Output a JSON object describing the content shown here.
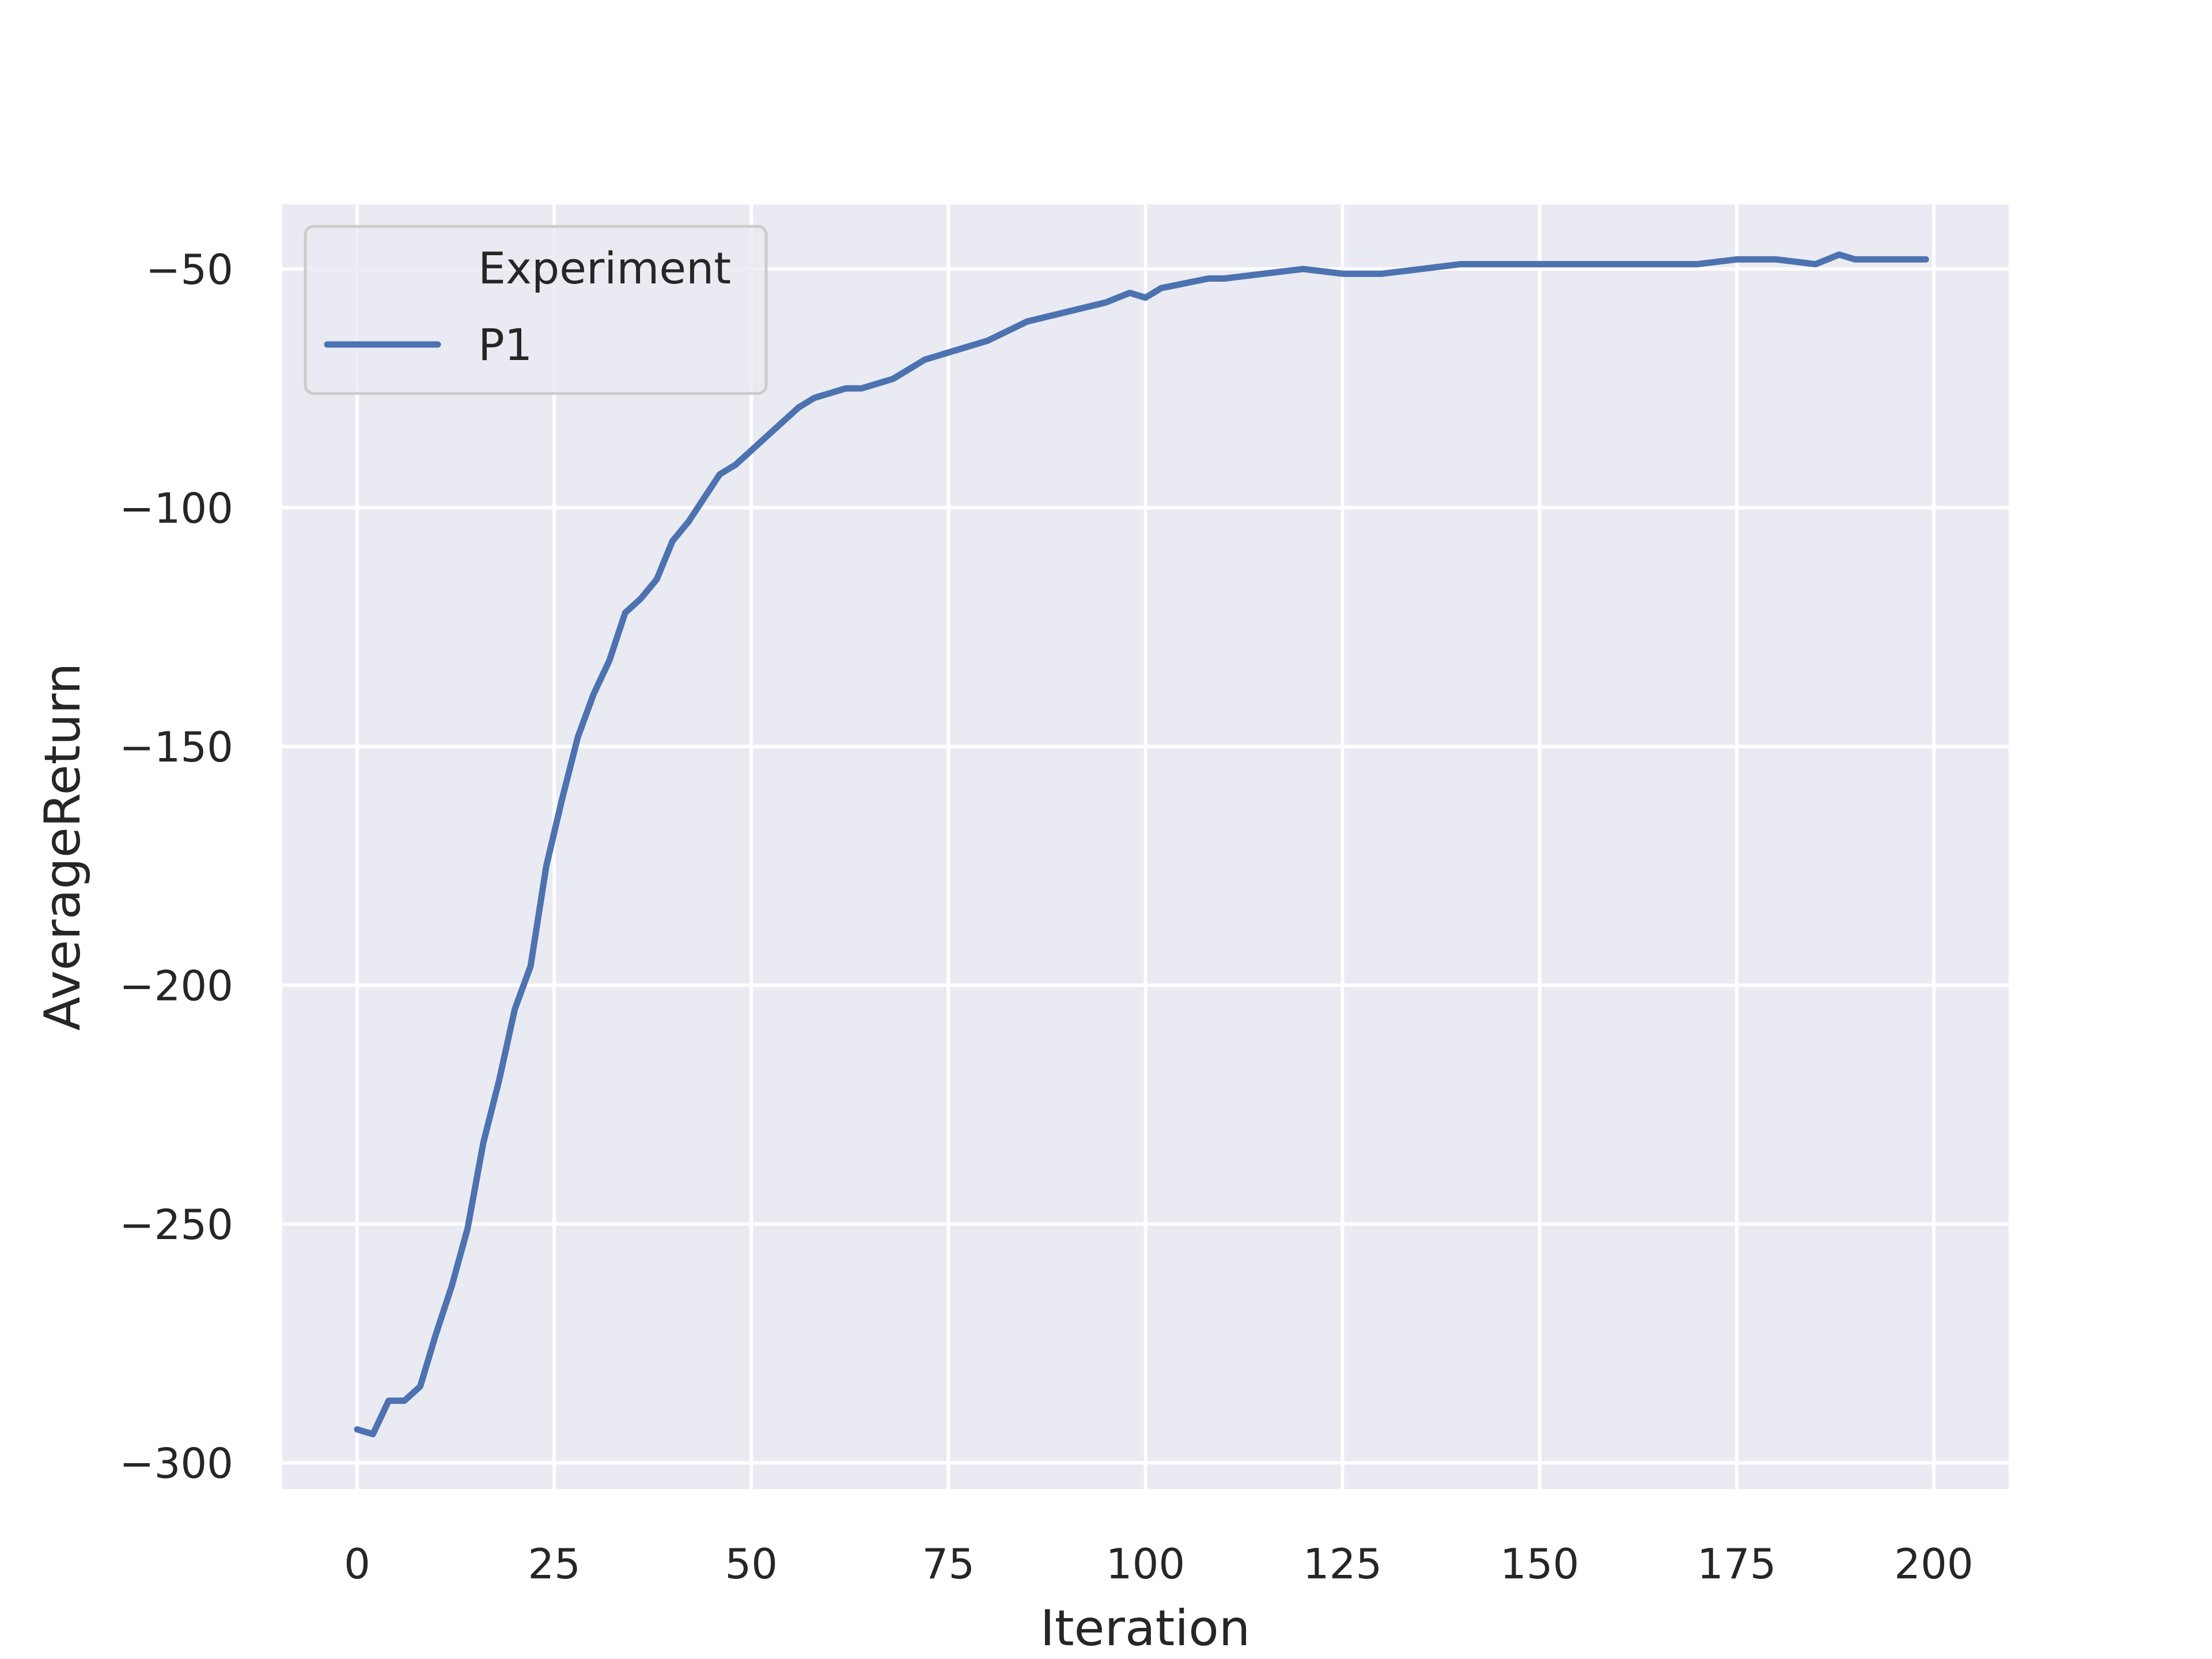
{
  "chart_data": {
    "type": "line",
    "xlabel": "Iteration",
    "ylabel": "AverageReturn",
    "xlim": [
      -9.5,
      209.5
    ],
    "ylim": [
      -305.5,
      -36.5
    ],
    "x_ticks": [
      0,
      25,
      50,
      75,
      100,
      125,
      150,
      175,
      200
    ],
    "y_ticks": [
      -300,
      -250,
      -200,
      -150,
      -100,
      -50
    ],
    "grid": true,
    "legend": {
      "title": "Experiment",
      "placement": "top-left",
      "entries": [
        {
          "name": "P1",
          "color": "#4c72b0"
        }
      ]
    },
    "series": [
      {
        "name": "P1",
        "color": "#4c72b0",
        "x": [
          0,
          2,
          4,
          6,
          8,
          10,
          12,
          14,
          16,
          18,
          20,
          22,
          24,
          26,
          28,
          30,
          32,
          34,
          36,
          38,
          40,
          42,
          44,
          46,
          48,
          50,
          52,
          54,
          56,
          58,
          60,
          62,
          64,
          66,
          68,
          70,
          72,
          74,
          76,
          78,
          80,
          85,
          90,
          95,
          98,
          100,
          102,
          105,
          108,
          110,
          115,
          120,
          125,
          130,
          135,
          140,
          145,
          150,
          155,
          160,
          165,
          170,
          175,
          180,
          185,
          188,
          190,
          195,
          199
        ],
        "y": [
          -293,
          -294,
          -287,
          -287,
          -284,
          -273,
          -263,
          -251,
          -233,
          -220,
          -205,
          -196,
          -175,
          -161,
          -148,
          -139,
          -132,
          -122,
          -119,
          -115,
          -107,
          -103,
          -98,
          -93,
          -91,
          -88,
          -85,
          -82,
          -79,
          -77,
          -76,
          -75,
          -75,
          -74,
          -73,
          -71,
          -69,
          -68,
          -67,
          -66,
          -65,
          -61,
          -59,
          -57,
          -55,
          -56,
          -54,
          -53,
          -52,
          -52,
          -51,
          -50,
          -51,
          -51,
          -50,
          -49,
          -49,
          -49,
          -49,
          -49,
          -49,
          -49,
          -48,
          -48,
          -49,
          -47,
          -48,
          -48,
          -48
        ]
      }
    ]
  }
}
